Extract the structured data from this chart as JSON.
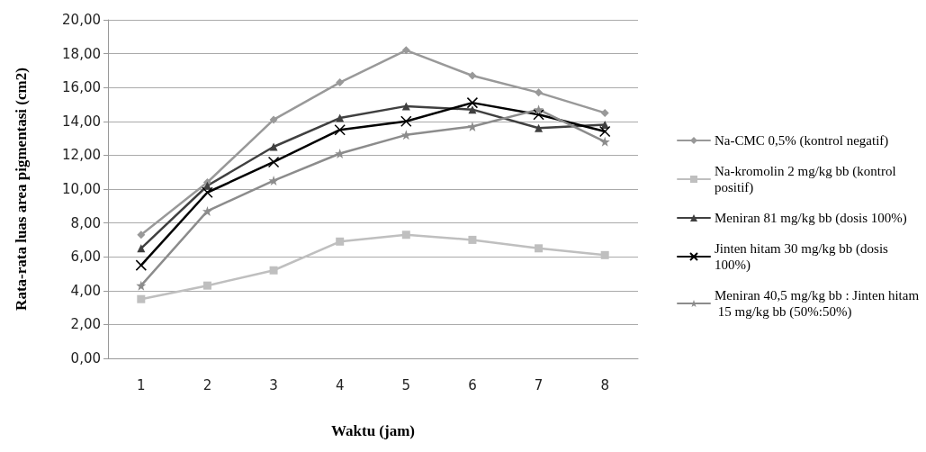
{
  "chart_data": {
    "type": "line",
    "xlabel": "Waktu (jam)",
    "ylabel": "Rata-rata luas area pigmentasi (cm2)",
    "categories": [
      "1",
      "2",
      "3",
      "4",
      "5",
      "6",
      "7",
      "8"
    ],
    "ylim": [
      0,
      20
    ],
    "yticks": [
      {
        "value": 0,
        "label": "0,00"
      },
      {
        "value": 2,
        "label": "2,00"
      },
      {
        "value": 4,
        "label": "4,00"
      },
      {
        "value": 6,
        "label": "6,00"
      },
      {
        "value": 8,
        "label": "8,00"
      },
      {
        "value": 10,
        "label": "10,00"
      },
      {
        "value": 12,
        "label": "12,00"
      },
      {
        "value": 14,
        "label": "14,00"
      },
      {
        "value": 16,
        "label": "16,00"
      },
      {
        "value": 18,
        "label": "18,00"
      },
      {
        "value": 20,
        "label": "20,00"
      }
    ],
    "grid": "y",
    "legend": "right",
    "line_style": "solid",
    "series": [
      {
        "name": "Na-CMC 0,5% (kontrol negatif)",
        "color": "#999999",
        "marker": "diamond",
        "values": [
          7.3,
          10.4,
          14.1,
          16.3,
          18.2,
          16.7,
          15.7,
          14.5
        ]
      },
      {
        "name": "Na-kromolin 2 mg/kg bb (kontrol positif)",
        "color": "#bfbfbf",
        "marker": "square",
        "values": [
          3.5,
          4.3,
          5.2,
          6.9,
          7.3,
          7.0,
          6.5,
          6.1
        ]
      },
      {
        "name": "Meniran 81 mg/kg bb (dosis 100%)",
        "color": "#404040",
        "marker": "triangle",
        "values": [
          6.5,
          10.2,
          12.5,
          14.2,
          14.9,
          14.7,
          13.6,
          13.8
        ]
      },
      {
        "name": "Jinten hitam 30 mg/kg bb (dosis 100%)",
        "color": "#000000",
        "marker": "cross",
        "values": [
          5.5,
          9.8,
          11.6,
          13.5,
          14.0,
          15.1,
          14.4,
          13.4
        ]
      },
      {
        "name": "Meniran 40,5 mg/kg bb : Jinten hitam 15 mg/kg bb (50%:50%)",
        "color": "#8c8c8c",
        "marker": "star",
        "values": [
          4.3,
          8.7,
          10.5,
          12.1,
          13.2,
          13.7,
          14.7,
          12.8
        ]
      }
    ]
  }
}
